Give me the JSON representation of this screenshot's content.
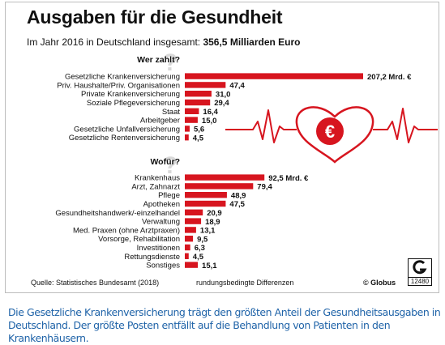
{
  "header": {
    "title": "Ausgaben für die Gesundheit",
    "subtitle_prefix": "Im Jahr 2016 in Deutschland insgesamt: ",
    "subtitle_total": "356,5 Milliarden Euro"
  },
  "chart_data": [
    {
      "type": "bar",
      "orientation": "horizontal",
      "title": "Wer zahlt?",
      "unit": "Mrd. €",
      "color": "#d7151f",
      "categories": [
        "Gesetzliche Krankenversicherung",
        "Priv. Haushalte/Priv. Organisationen",
        "Private Krankenversicherung",
        "Soziale Pflegeversicherung",
        "Staat",
        "Arbeitgeber",
        "Gesetzliche Unfallversicherung",
        "Gesetzliche Rentenversicherung"
      ],
      "values": [
        207.2,
        47.4,
        31.0,
        29.4,
        16.4,
        15.0,
        5.6,
        4.5
      ],
      "value_labels": [
        "207,2 Mrd. €",
        "47,4",
        "31,0",
        "29,4",
        "16,4",
        "15,0",
        "5,6",
        "4,5"
      ]
    },
    {
      "type": "bar",
      "orientation": "horizontal",
      "title": "Wofür?",
      "unit": "Mrd. €",
      "color": "#d7151f",
      "categories": [
        "Krankenhaus",
        "Arzt, Zahnarzt",
        "Pflege",
        "Apotheken",
        "Gesundheitshandwerk/-einzelhandel",
        "Verwaltung",
        "Med. Praxen (ohne Arztpraxen)",
        "Vorsorge, Rehabilitation",
        "Investitionen",
        "Rettungsdienste",
        "Sonstiges"
      ],
      "values": [
        92.5,
        79.4,
        48.9,
        47.5,
        20.9,
        18.9,
        13.1,
        9.5,
        6.3,
        4.5,
        15.1
      ],
      "value_labels": [
        "92,5 Mrd. €",
        "79,4",
        "48,9",
        "47,5",
        "20,9",
        "18,9",
        "13,1",
        "9,5",
        "6,3",
        "4,5",
        "15,1"
      ]
    }
  ],
  "footer": {
    "source": "Quelle: Statistisches Bundesamt (2018)",
    "note": "rundungsbedingte Differenzen",
    "credit": "© Globus",
    "logo_number": "12480"
  },
  "decor": {
    "heart_symbol": "€",
    "heart_icon": "heart-with-euro-icon",
    "heartbeat_icon": "heartbeat-line-icon"
  },
  "caption": "Die Gesetzliche Krankenversicherung trägt den größten Anteil der Gesundheitsausgaben in Deutschland. Der größte Posten entfällt auf die Behandlung von Patienten in den Krankenhäusern."
}
